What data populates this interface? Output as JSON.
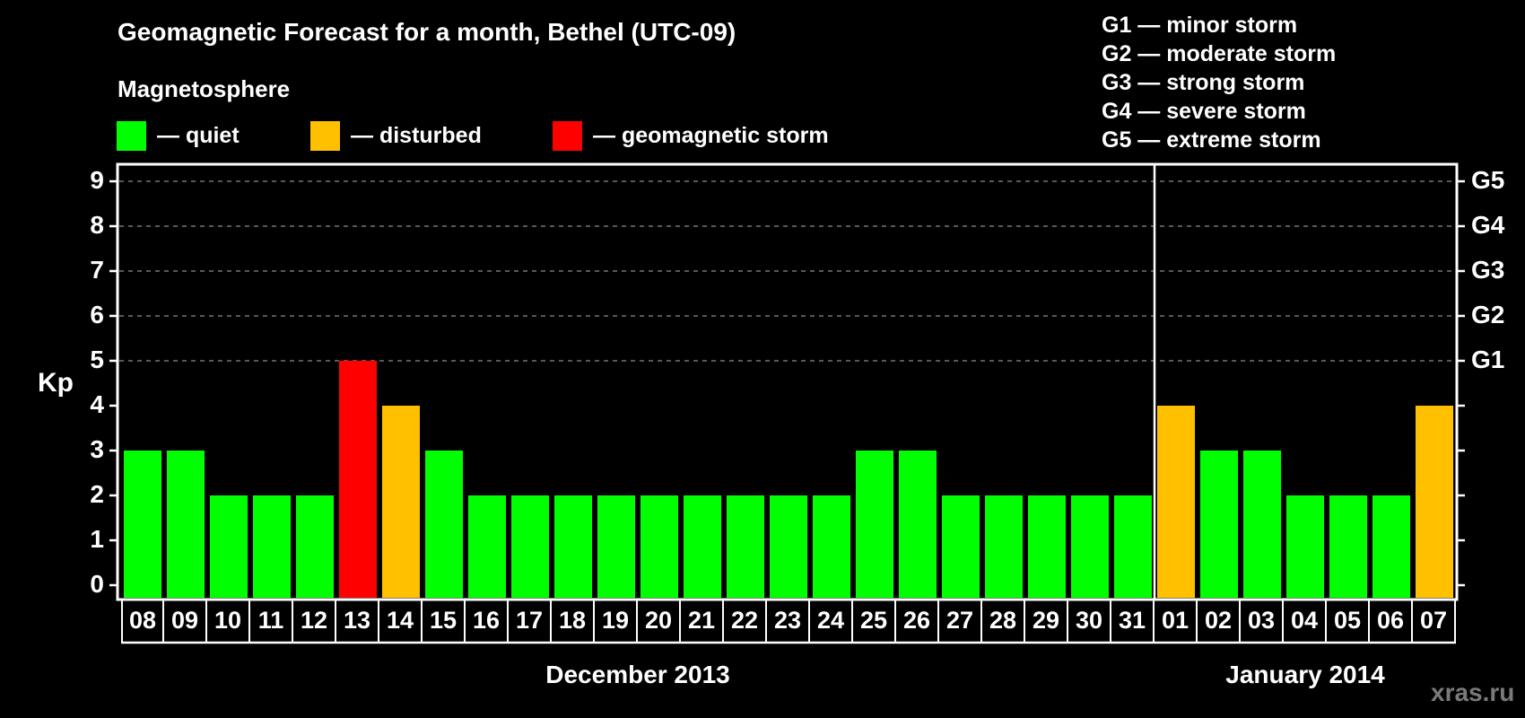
{
  "header": {
    "title": "Geomagnetic Forecast for a month, Bethel (UTC-09)",
    "subtitle": "Magnetosphere"
  },
  "legend": {
    "status": [
      {
        "label": "— quiet",
        "color": "#00ff00"
      },
      {
        "label": "— disturbed",
        "color": "#ffc000"
      },
      {
        "label": "— geomagnetic storm",
        "color": "#ff0000"
      }
    ],
    "g_scale": [
      "G1 — minor storm",
      "G2 — moderate storm",
      "G3 — strong storm",
      "G4 — severe storm",
      "G5 — extreme storm"
    ]
  },
  "axis": {
    "ylabel": "Kp",
    "y_ticks": [
      "0",
      "1",
      "2",
      "3",
      "4",
      "5",
      "6",
      "7",
      "8",
      "9"
    ],
    "g_ticks": [
      {
        "label": "G1",
        "kp": 5
      },
      {
        "label": "G2",
        "kp": 6
      },
      {
        "label": "G3",
        "kp": 7
      },
      {
        "label": "G4",
        "kp": 8
      },
      {
        "label": "G5",
        "kp": 9
      }
    ],
    "months": [
      {
        "label": "December 2013"
      },
      {
        "label": "January 2014"
      }
    ]
  },
  "watermark": "xras.ru",
  "colors": {
    "quiet": "#00ff00",
    "disturbed": "#ffc000",
    "storm": "#ff0000",
    "grid": "#8c8c8c",
    "frame": "#ffffff",
    "background": "#000000"
  },
  "chart_data": {
    "type": "bar",
    "title": "Geomagnetic Forecast for a month, Bethel (UTC-09)",
    "xlabel": "December 2013 / January 2014",
    "ylabel": "Kp",
    "ylim": [
      0,
      9
    ],
    "grid": true,
    "secondary_axis": {
      "G1": 5,
      "G2": 6,
      "G3": 7,
      "G4": 8,
      "G5": 9
    },
    "categories": [
      "08",
      "09",
      "10",
      "11",
      "12",
      "13",
      "14",
      "15",
      "16",
      "17",
      "18",
      "19",
      "20",
      "21",
      "22",
      "23",
      "24",
      "25",
      "26",
      "27",
      "28",
      "29",
      "30",
      "31",
      "01",
      "02",
      "03",
      "04",
      "05",
      "06",
      "07"
    ],
    "values": [
      3,
      3,
      2,
      2,
      2,
      5,
      4,
      3,
      2,
      2,
      2,
      2,
      2,
      2,
      2,
      2,
      2,
      3,
      3,
      2,
      2,
      2,
      2,
      2,
      4,
      3,
      3,
      2,
      2,
      2,
      4
    ],
    "status": [
      "quiet",
      "quiet",
      "quiet",
      "quiet",
      "quiet",
      "storm",
      "disturbed",
      "quiet",
      "quiet",
      "quiet",
      "quiet",
      "quiet",
      "quiet",
      "quiet",
      "quiet",
      "quiet",
      "quiet",
      "quiet",
      "quiet",
      "quiet",
      "quiet",
      "quiet",
      "quiet",
      "quiet",
      "disturbed",
      "quiet",
      "quiet",
      "quiet",
      "quiet",
      "quiet",
      "disturbed"
    ],
    "month_groups": [
      {
        "label": "December 2013",
        "start": 0,
        "end": 23
      },
      {
        "label": "January 2014",
        "start": 24,
        "end": 30
      }
    ],
    "legend": [
      "quiet",
      "disturbed",
      "geomagnetic storm"
    ]
  }
}
